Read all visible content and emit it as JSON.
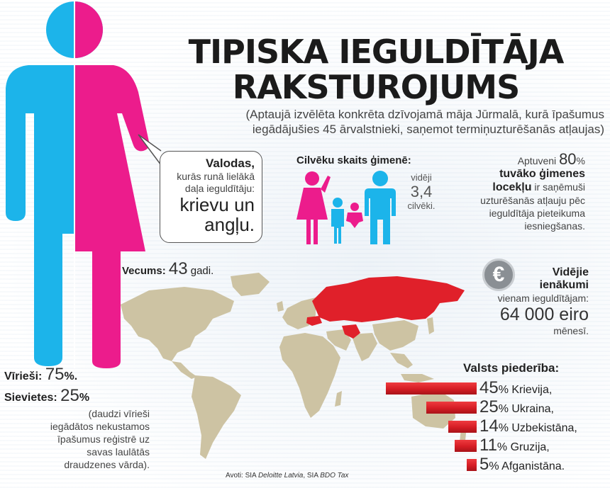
{
  "title_line1": "TIPISKA IEGULDĪTĀJA",
  "title_line2": "RAKSTUROJUMS",
  "subtitle_line1": "(Aptaujā izvēlēta konkrēta dzīvojamā māja Jūrmalā, kurā īpašumus",
  "subtitle_line2": "iegādājušies 45 ārvalstnieki, saņemot termiņuzturēšanās atļaujas)",
  "languages": {
    "heading": "Valodas,",
    "line1": "kurās runā lielākā",
    "line2": "daļa ieguldītāju:",
    "value1": "krievu un",
    "value2": "angļu."
  },
  "family": {
    "heading": "Cilvēku skaits ģimenē:",
    "pre": "vidēji",
    "value": "3,4",
    "unit": "cilvēki."
  },
  "relatives": {
    "pre": "Aptuveni",
    "percent": "80",
    "pct_sign": "%",
    "bold1": "tuvāko ģimenes",
    "bold2": "locekļu",
    "rest1": " ir saņēmuši",
    "line3": "uzturēšanās atļauju pēc",
    "line4": "ieguldītāja pieteikuma",
    "line5": "iesniegšanas."
  },
  "age": {
    "label": "Vecums:",
    "value": "43",
    "unit": "gadi."
  },
  "income": {
    "symbol": "€",
    "heading1": "Vidējie",
    "heading2": "ienākumi",
    "line1": "vienam ieguldītājam:",
    "value": "64 000 eiro",
    "unit": "mēnesī."
  },
  "gender": {
    "men_label": "Vīrieši:",
    "men_value": "75",
    "women_label": "Sievietes:",
    "women_value": "25",
    "pct_sign": "%",
    "period": ".",
    "note1": "(daudzi vīrieši",
    "note2": "iegādātos nekustamos",
    "note3": "īpašumus reģistrē uz",
    "note4": "savas laulātās",
    "note5": "draudzenes vārda)."
  },
  "source": {
    "prefix": "Avoti: SIA ",
    "org1": "Deloitte Latvia",
    "sep": ", SIA ",
    "org2": "BDO Tax"
  },
  "colors": {
    "men": "#1cb4ea",
    "women": "#ec1c8c",
    "map_land": "#cdc3a3",
    "highlight": "#e0202a",
    "bar": "#d51c24"
  },
  "chart_data": {
    "type": "bar",
    "title": "Valsts piederība:",
    "categories": [
      "Krievija",
      "Ukraina",
      "Uzbekistāna",
      "Gruzija",
      "Afganistāna"
    ],
    "values": [
      45,
      25,
      14,
      11,
      5
    ],
    "unit": "%",
    "orientation": "horizontal"
  }
}
